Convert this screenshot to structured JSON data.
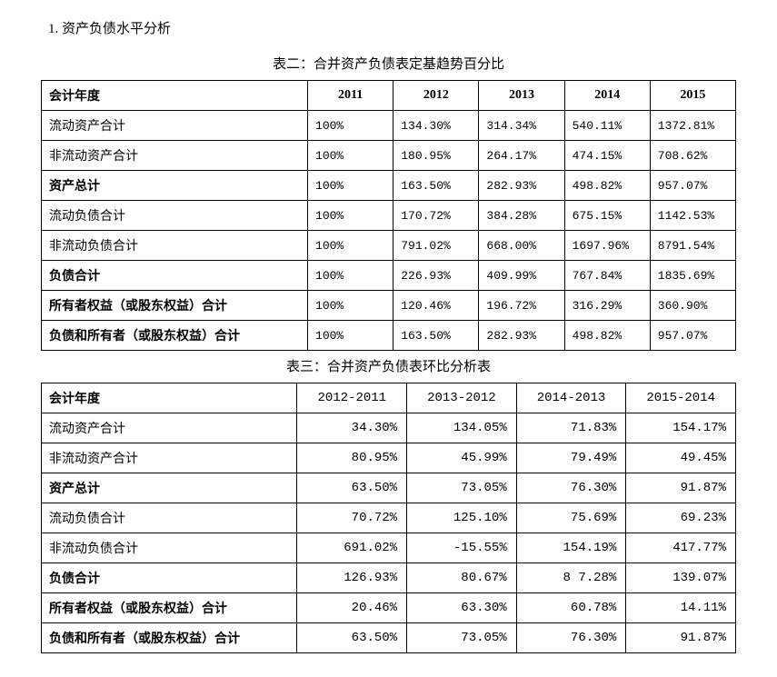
{
  "section_title": "1. 资产负债水平分析",
  "table1": {
    "caption": "表二：合并资产负债表定基趋势百分比",
    "header_label": "会计年度",
    "years": [
      "2011",
      "2012",
      "2013",
      "2014",
      "2015"
    ],
    "rows": [
      {
        "label": "流动资产合计",
        "bold": false,
        "vals": [
          "100%",
          "134.30%",
          "314.34%",
          "540.11%",
          "1372.81%"
        ]
      },
      {
        "label": "非流动资产合计",
        "bold": false,
        "vals": [
          "100%",
          "180.95%",
          "264.17%",
          "474.15%",
          "708.62%"
        ]
      },
      {
        "label": "资产总计",
        "bold": true,
        "vals": [
          "100%",
          "163.50%",
          "282.93%",
          "498.82%",
          "957.07%"
        ]
      },
      {
        "label": "流动负债合计",
        "bold": false,
        "vals": [
          "100%",
          "170.72%",
          "384.28%",
          "675.15%",
          "1142.53%"
        ]
      },
      {
        "label": "非流动负债合计",
        "bold": false,
        "vals": [
          "100%",
          "791.02%",
          "668.00%",
          "1697.96%",
          "8791.54%"
        ]
      },
      {
        "label": "负债合计",
        "bold": true,
        "vals": [
          "100%",
          "226.93%",
          "409.99%",
          "767.84%",
          "1835.69%"
        ]
      },
      {
        "label": "所有者权益（或股东权益）合计",
        "bold": true,
        "vals": [
          "100%",
          "120.46%",
          "196.72%",
          "316.29%",
          "360.90%"
        ]
      },
      {
        "label": "负债和所有者（或股东权益）合计",
        "bold": true,
        "vals": [
          "100%",
          "163.50%",
          "282.93%",
          "498.82%",
          "957.07%"
        ]
      }
    ]
  },
  "table2": {
    "caption": "表三：合并资产负债表环比分析表",
    "header_label": "会计年度",
    "periods": [
      "2012-2011",
      "2013-2012",
      "2014-2013",
      "2015-2014"
    ],
    "rows": [
      {
        "label": "流动资产合计",
        "bold": false,
        "vals": [
          "34.30%",
          "134.05%",
          "71.83%",
          "154.17%"
        ]
      },
      {
        "label": "非流动资产合计",
        "bold": false,
        "vals": [
          "80.95%",
          "45.99%",
          "79.49%",
          "49.45%"
        ]
      },
      {
        "label": "资产总计",
        "bold": true,
        "vals": [
          "63.50%",
          "73.05%",
          "76.30%",
          "91.87%"
        ]
      },
      {
        "label": "流动负债合计",
        "bold": false,
        "vals": [
          "70.72%",
          "125.10%",
          "75.69%",
          "69.23%"
        ]
      },
      {
        "label": "非流动负债合计",
        "bold": false,
        "vals": [
          "691.02%",
          "-15.55%",
          "154.19%",
          "417.77%"
        ]
      },
      {
        "label": "负债合计",
        "bold": true,
        "vals": [
          "126.93%",
          "80.67%",
          "8 7.28%",
          "139.07%"
        ]
      },
      {
        "label": "所有者权益（或股东权益）合计",
        "bold": true,
        "vals": [
          "20.46%",
          "63.30%",
          "60.78%",
          "14.11%"
        ]
      },
      {
        "label": "负债和所有者（或股东权益）合计",
        "bold": true,
        "vals": [
          "63.50%",
          "73.05%",
          "76.30%",
          "91.87%"
        ]
      }
    ]
  }
}
